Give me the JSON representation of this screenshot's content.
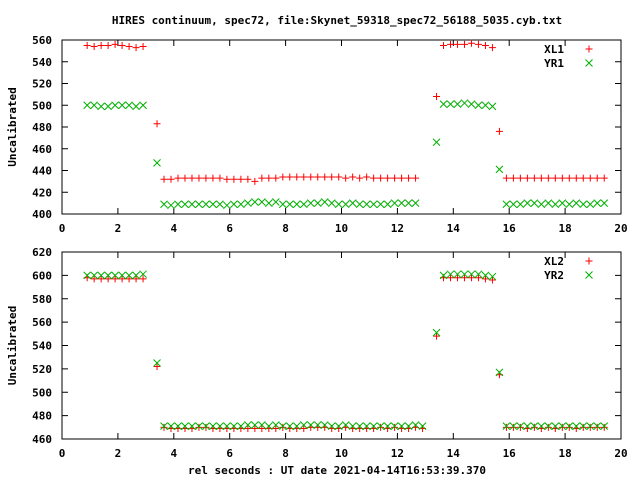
{
  "figure_title": "HIRES continuum, spec72, file:Skynet_59318_spec72_56188_5035.cyb.txt",
  "xlabel": "rel seconds : UT date 2021-04-14T16:53:39.370",
  "colors": {
    "red": "#ff0000",
    "green": "#00b000"
  },
  "chart_data": [
    {
      "type": "scatter",
      "title": "",
      "ylabel": "Uncalibrated",
      "xlabel": "",
      "xlim": [
        0,
        20
      ],
      "ylim": [
        400,
        560
      ],
      "xticks": [
        0,
        2,
        4,
        6,
        8,
        10,
        12,
        14,
        16,
        18,
        20
      ],
      "yticks": [
        400,
        420,
        440,
        460,
        480,
        500,
        520,
        540,
        560
      ],
      "grid": false,
      "legend_position": "top-right",
      "x": [
        0.9,
        1.15,
        1.4,
        1.65,
        1.9,
        2.15,
        2.4,
        2.65,
        2.9,
        3.15,
        3.4,
        3.65,
        3.9,
        4.15,
        4.4,
        4.65,
        4.9,
        5.15,
        5.4,
        5.65,
        5.9,
        6.15,
        6.4,
        6.65,
        6.9,
        7.15,
        7.4,
        7.65,
        7.9,
        8.15,
        8.4,
        8.65,
        8.9,
        9.15,
        9.4,
        9.65,
        9.9,
        10.15,
        10.4,
        10.65,
        10.9,
        11.15,
        11.4,
        11.65,
        11.9,
        12.15,
        12.4,
        12.65,
        12.9,
        13.15,
        13.4,
        13.65,
        13.9,
        14.15,
        14.4,
        14.65,
        14.9,
        15.15,
        15.4,
        15.65,
        15.9,
        16.15,
        16.4,
        16.65,
        16.9,
        17.15,
        17.4,
        17.65,
        17.9,
        18.15,
        18.4,
        18.65,
        18.9,
        19.15,
        19.4
      ],
      "series": [
        {
          "name": "XL1",
          "marker": "plus",
          "color": "#ff0000",
          "values": [
            555,
            554,
            555,
            555,
            556,
            555,
            554,
            553,
            554,
            null,
            483,
            432,
            432,
            433,
            433,
            433,
            433,
            433,
            433,
            433,
            432,
            432,
            432,
            432,
            430,
            433,
            433,
            433,
            434,
            434,
            434,
            434,
            434,
            434,
            434,
            434,
            434,
            433,
            434,
            433,
            434,
            433,
            433,
            433,
            433,
            433,
            433,
            433,
            null,
            null,
            508,
            555,
            556,
            556,
            556,
            557,
            556,
            555,
            553,
            476,
            433,
            433,
            433,
            433,
            433,
            433,
            433,
            433,
            433,
            433,
            433,
            433,
            433,
            433,
            433
          ]
        },
        {
          "name": "YR1",
          "marker": "cross",
          "color": "#00b000",
          "values": [
            500,
            500,
            499,
            499,
            500,
            500,
            500,
            499,
            500,
            null,
            447,
            409,
            408,
            409,
            409,
            409,
            409,
            409,
            409,
            409,
            408,
            409,
            409,
            410,
            411,
            411,
            410,
            411,
            409,
            409,
            409,
            409,
            410,
            410,
            411,
            410,
            409,
            409,
            410,
            409,
            409,
            409,
            409,
            409,
            410,
            410,
            410,
            410,
            null,
            null,
            466,
            501,
            501,
            501,
            502,
            501,
            500,
            500,
            499,
            441,
            409,
            409,
            409,
            410,
            410,
            409,
            410,
            409,
            410,
            409,
            410,
            409,
            409,
            410,
            410
          ]
        }
      ]
    },
    {
      "type": "scatter",
      "title": "",
      "ylabel": "Uncalibrated",
      "xlabel": "rel seconds : UT date 2021-04-14T16:53:39.370",
      "xlim": [
        0,
        20
      ],
      "ylim": [
        460,
        620
      ],
      "xticks": [
        0,
        2,
        4,
        6,
        8,
        10,
        12,
        14,
        16,
        18,
        20
      ],
      "yticks": [
        460,
        480,
        500,
        520,
        540,
        560,
        580,
        600,
        620
      ],
      "grid": false,
      "legend_position": "top-right",
      "x": [
        0.9,
        1.15,
        1.4,
        1.65,
        1.9,
        2.15,
        2.4,
        2.65,
        2.9,
        3.15,
        3.4,
        3.65,
        3.9,
        4.15,
        4.4,
        4.65,
        4.9,
        5.15,
        5.4,
        5.65,
        5.9,
        6.15,
        6.4,
        6.65,
        6.9,
        7.15,
        7.4,
        7.65,
        7.9,
        8.15,
        8.4,
        8.65,
        8.9,
        9.15,
        9.4,
        9.65,
        9.9,
        10.15,
        10.4,
        10.65,
        10.9,
        11.15,
        11.4,
        11.65,
        11.9,
        12.15,
        12.4,
        12.65,
        12.9,
        13.15,
        13.4,
        13.65,
        13.9,
        14.15,
        14.4,
        14.65,
        14.9,
        15.15,
        15.4,
        15.65,
        15.9,
        16.15,
        16.4,
        16.65,
        16.9,
        17.15,
        17.4,
        17.65,
        17.9,
        18.15,
        18.4,
        18.65,
        18.9,
        19.15,
        19.4
      ],
      "series": [
        {
          "name": "XL2",
          "marker": "plus",
          "color": "#ff0000",
          "values": [
            598,
            597,
            597,
            597,
            597,
            597,
            597,
            597,
            597,
            null,
            522,
            470,
            469,
            469,
            469,
            469,
            470,
            470,
            469,
            469,
            469,
            469,
            469,
            469,
            469,
            469,
            469,
            469,
            470,
            469,
            469,
            469,
            470,
            470,
            470,
            469,
            469,
            470,
            469,
            469,
            469,
            469,
            470,
            469,
            470,
            469,
            469,
            470,
            469,
            null,
            548,
            598,
            598,
            598,
            598,
            598,
            598,
            597,
            596,
            515,
            470,
            470,
            470,
            469,
            470,
            469,
            470,
            469,
            470,
            470,
            469,
            470,
            470,
            470,
            470
          ]
        },
        {
          "name": "YR2",
          "marker": "cross",
          "color": "#00b000",
          "values": [
            600,
            600,
            600,
            600,
            600,
            600,
            600,
            600,
            601,
            null,
            525,
            471,
            471,
            471,
            471,
            471,
            471,
            471,
            471,
            471,
            471,
            471,
            471,
            472,
            472,
            472,
            471,
            472,
            471,
            471,
            471,
            472,
            472,
            472,
            472,
            471,
            471,
            472,
            471,
            471,
            471,
            471,
            471,
            471,
            471,
            471,
            471,
            472,
            471,
            null,
            551,
            600,
            601,
            601,
            601,
            601,
            601,
            600,
            599,
            517,
            471,
            471,
            471,
            471,
            471,
            471,
            471,
            471,
            471,
            471,
            471,
            471,
            471,
            471,
            471
          ]
        }
      ]
    }
  ]
}
